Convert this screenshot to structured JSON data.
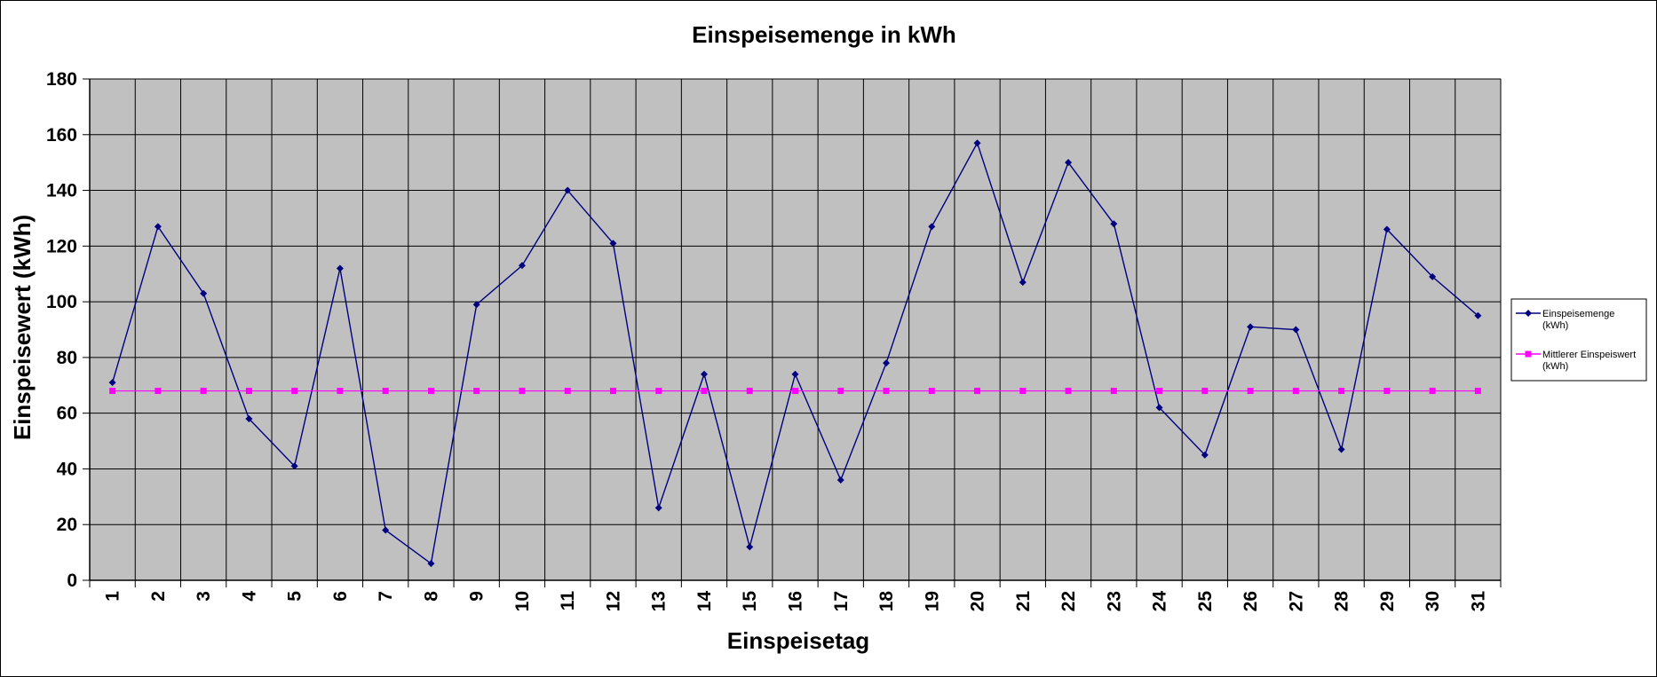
{
  "chart_data": {
    "type": "line",
    "title": "Einspeisemenge in kWh",
    "xlabel": "Einspeisetag",
    "ylabel": "Einspeisewert  (kWh)",
    "categories": [
      "1",
      "2",
      "3",
      "4",
      "5",
      "6",
      "7",
      "8",
      "9",
      "10",
      "11",
      "12",
      "13",
      "14",
      "15",
      "16",
      "17",
      "18",
      "19",
      "20",
      "21",
      "22",
      "23",
      "24",
      "25",
      "26",
      "27",
      "28",
      "29",
      "30",
      "31"
    ],
    "ylim": [
      0,
      180
    ],
    "yticks": [
      "0",
      "20",
      "40",
      "60",
      "80",
      "100",
      "120",
      "140",
      "160",
      "180"
    ],
    "grid": true,
    "plot_background": "#c0c0c0",
    "legend_position": "right",
    "series": [
      {
        "name": "Einspeisemenge (kWh)",
        "legend_lines": [
          "Einspeisemenge",
          "(kWh)"
        ],
        "color": "#000080",
        "marker": "diamond",
        "values": [
          71,
          127,
          103,
          58,
          41,
          112,
          18,
          6,
          99,
          113,
          140,
          121,
          26,
          74,
          12,
          74,
          36,
          78,
          127,
          157,
          107,
          150,
          128,
          62,
          45,
          91,
          90,
          47,
          126,
          109,
          95
        ]
      },
      {
        "name": "Mittlerer Einspeiswert (kWh)",
        "legend_lines": [
          "Mittlerer Einspeiswert",
          "(kWh)"
        ],
        "color": "#ff00ff",
        "marker": "square",
        "values": [
          68,
          68,
          68,
          68,
          68,
          68,
          68,
          68,
          68,
          68,
          68,
          68,
          68,
          68,
          68,
          68,
          68,
          68,
          68,
          68,
          68,
          68,
          68,
          68,
          68,
          68,
          68,
          68,
          68,
          68,
          68
        ]
      }
    ]
  }
}
